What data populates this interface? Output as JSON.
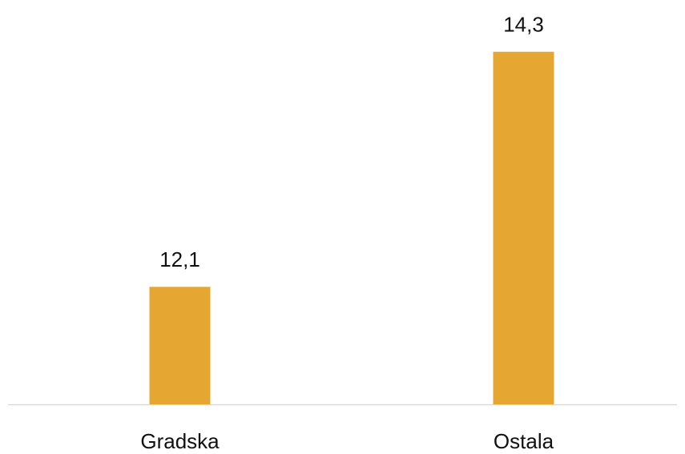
{
  "chart_data": {
    "type": "bar",
    "categories": [
      "Gradska",
      "Ostala"
    ],
    "values": [
      12.1,
      14.3
    ],
    "value_labels": [
      "12,1",
      "14,3"
    ],
    "color": "#e5a732",
    "ylim": [
      11,
      14.5
    ]
  }
}
